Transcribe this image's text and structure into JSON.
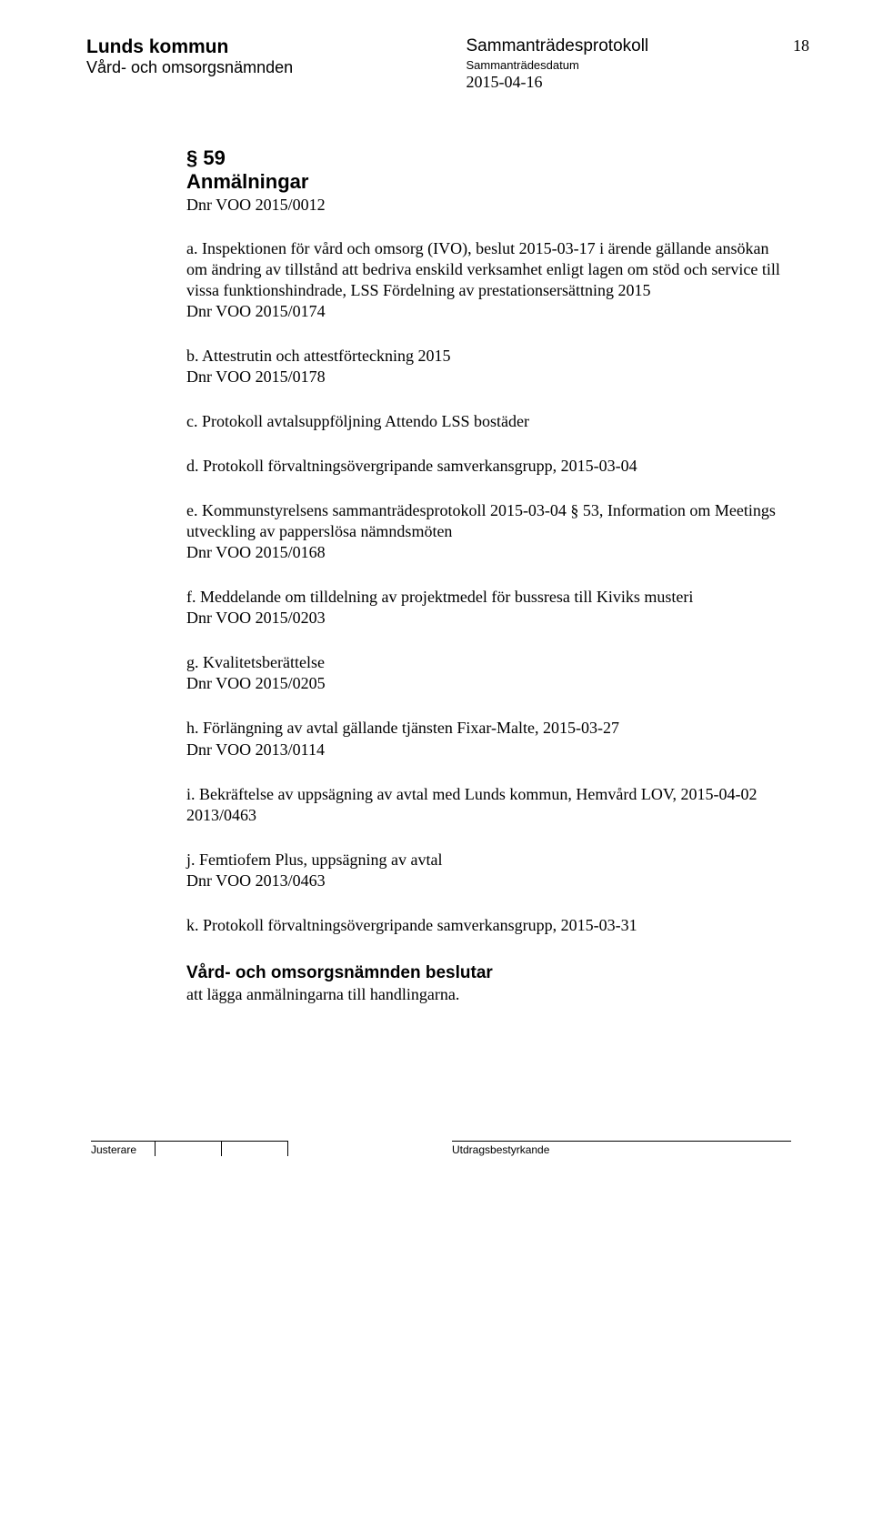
{
  "header": {
    "org_name": "Lunds kommun",
    "committee": "Vård- och omsorgsnämnden",
    "protocol_title": "Sammanträdesprotokoll",
    "date_label": "Sammanträdesdatum",
    "date_value": "2015-04-16",
    "page_number": "18"
  },
  "section": {
    "marker": "§ 59",
    "title": "Anmälningar",
    "dnr": "Dnr VOO 2015/0012"
  },
  "items": [
    "a. Inspektionen för vård och omsorg (IVO), beslut 2015-03-17 i ärende gällande ansökan om ändring av tillstånd att bedriva enskild verksamhet enligt lagen om stöd och service till vissa funktionshindrade, LSS Fördelning av prestationsersättning 2015\nDnr VOO 2015/0174",
    "b. Attestrutin och attestförteckning 2015\nDnr VOO 2015/0178",
    "c. Protokoll avtalsuppföljning Attendo LSS bostäder",
    "d. Protokoll förvaltningsövergripande samverkansgrupp, 2015-03-04",
    "e. Kommunstyrelsens sammanträdesprotokoll 2015-03-04 § 53, Information om Meetings utveckling av papperslösa nämndsmöten\nDnr VOO 2015/0168",
    "f. Meddelande om tilldelning av projektmedel för bussresa till Kiviks musteri\nDnr VOO 2015/0203",
    "g. Kvalitetsberättelse\nDnr VOO 2015/0205",
    "h. Förlängning av avtal gällande tjänsten Fixar-Malte, 2015-03-27\nDnr VOO 2013/0114",
    "i. Bekräftelse av uppsägning av avtal med Lunds kommun, Hemvård LOV, 2015-04-02\n2013/0463",
    "j. Femtiofem Plus, uppsägning av avtal\nDnr VOO 2013/0463",
    "k. Protokoll förvaltningsövergripande samverkansgrupp, 2015-03-31"
  ],
  "decision": {
    "heading": "Vård- och omsorgsnämnden beslutar",
    "body": "att lägga anmälningarna till handlingarna."
  },
  "footer": {
    "left_label": "Justerare",
    "right_label": "Utdragsbestyrkande"
  }
}
